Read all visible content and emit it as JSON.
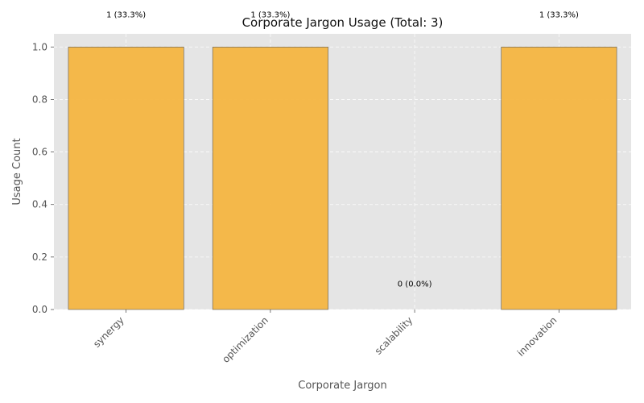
{
  "chart_data": {
    "type": "bar",
    "title": "Corporate Jargon Usage (Total: 3)",
    "xlabel": "Corporate Jargon",
    "ylabel": "Usage Count",
    "categories": [
      "synergy",
      "optimization",
      "scalability",
      "innovation"
    ],
    "values": [
      1,
      0.9999,
      0,
      1
    ],
    "data_labels": [
      "1 (33.3%)",
      "1 (33.3%)",
      "0 (0.0%)",
      "1 (33.3%)"
    ],
    "ylim": [
      0,
      1.05
    ],
    "yticks": [
      0.0,
      0.2,
      0.4,
      0.6,
      0.8,
      1.0
    ],
    "ytick_labels": [
      "0.0",
      "0.2",
      "0.4",
      "0.6",
      "0.8",
      "1.0"
    ],
    "grid": true,
    "colors": {
      "bar": "#f5b642",
      "bar_edge": "#555555",
      "plot_background": "#e5e5e5",
      "grid": "#ffffff"
    }
  }
}
